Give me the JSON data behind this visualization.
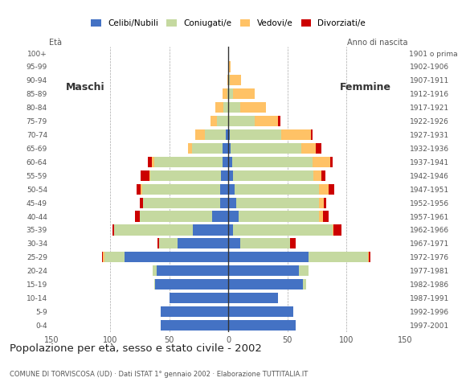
{
  "age_groups": [
    "0-4",
    "5-9",
    "10-14",
    "15-19",
    "20-24",
    "25-29",
    "30-34",
    "35-39",
    "40-44",
    "45-49",
    "50-54",
    "55-59",
    "60-64",
    "65-69",
    "70-74",
    "75-79",
    "80-84",
    "85-89",
    "90-94",
    "95-99",
    "100+"
  ],
  "birth_years": [
    "1997-2001",
    "1992-1996",
    "1987-1991",
    "1982-1986",
    "1977-1981",
    "1972-1976",
    "1967-1971",
    "1962-1966",
    "1957-1961",
    "1952-1956",
    "1947-1951",
    "1942-1946",
    "1937-1941",
    "1932-1936",
    "1927-1931",
    "1922-1926",
    "1917-1921",
    "1912-1916",
    "1907-1911",
    "1902-1906",
    "1901 o prima"
  ],
  "male": {
    "celibe": [
      57,
      57,
      50,
      62,
      61,
      88,
      43,
      30,
      14,
      7,
      7,
      6,
      5,
      5,
      2,
      0,
      0,
      0,
      0,
      0,
      0
    ],
    "coniugato": [
      0,
      0,
      0,
      1,
      3,
      17,
      16,
      67,
      61,
      65,
      66,
      60,
      58,
      26,
      18,
      10,
      4,
      1,
      0,
      0,
      0
    ],
    "vedovo": [
      0,
      0,
      0,
      0,
      0,
      1,
      0,
      0,
      0,
      0,
      1,
      1,
      2,
      3,
      8,
      5,
      7,
      4,
      1,
      0,
      0
    ],
    "divorziato": [
      0,
      0,
      0,
      0,
      0,
      1,
      1,
      1,
      4,
      3,
      4,
      7,
      3,
      0,
      0,
      0,
      0,
      0,
      0,
      0,
      0
    ]
  },
  "female": {
    "celibe": [
      57,
      55,
      42,
      63,
      60,
      68,
      10,
      4,
      9,
      7,
      5,
      4,
      3,
      2,
      1,
      0,
      0,
      0,
      0,
      0,
      0
    ],
    "coniugato": [
      0,
      0,
      0,
      3,
      8,
      50,
      42,
      84,
      68,
      70,
      72,
      68,
      68,
      60,
      44,
      22,
      10,
      4,
      1,
      0,
      0
    ],
    "vedovo": [
      0,
      0,
      0,
      0,
      0,
      1,
      0,
      1,
      3,
      4,
      8,
      7,
      15,
      12,
      25,
      20,
      22,
      18,
      10,
      2,
      0
    ],
    "divorziato": [
      0,
      0,
      0,
      0,
      0,
      1,
      5,
      7,
      5,
      2,
      5,
      3,
      2,
      5,
      1,
      2,
      0,
      0,
      0,
      0,
      0
    ]
  },
  "colors": {
    "celibe": "#4472c4",
    "coniugato": "#c5d9a0",
    "vedovo": "#ffc266",
    "divorziato": "#cc0000"
  },
  "xlim": 150,
  "title": "Popolazione per età, sesso e stato civile - 2002",
  "subtitle": "COMUNE DI TORVISCOSA (UD) · Dati ISTAT 1° gennaio 2002 · Elaborazione TUTTITALIA.IT",
  "legend_labels": [
    "Celibi/Nubili",
    "Coniugati/e",
    "Vedovi/e",
    "Divorziati/e"
  ],
  "bg_color": "#ffffff",
  "grid_color": "#aaaaaa"
}
